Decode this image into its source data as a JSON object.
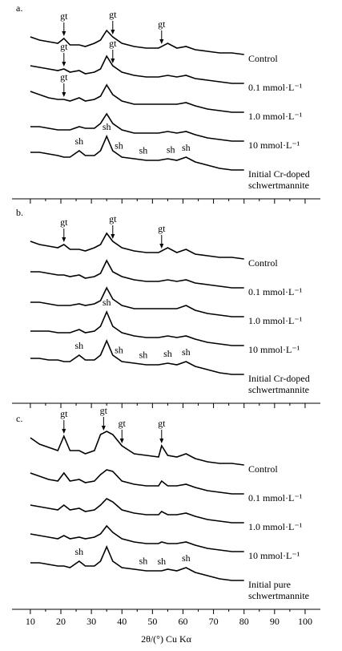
{
  "chart_data": [
    {
      "type": "line",
      "label": "a.",
      "show_tick_labels": false,
      "x": [
        10,
        13,
        16,
        19,
        21,
        23,
        26,
        28,
        31,
        33,
        35,
        37,
        40,
        44,
        48,
        52,
        55,
        58,
        61,
        64,
        68,
        72,
        76,
        80
      ],
      "series": [
        {
          "name": "Control",
          "color": "#000000",
          "values": [
            6,
            5,
            4.5,
            4,
            5.5,
            3.5,
            3.5,
            3,
            4,
            5,
            8,
            6,
            4,
            3,
            2.5,
            2.5,
            4,
            2.5,
            3,
            2,
            1.5,
            1,
            1,
            0.5
          ]
        },
        {
          "name": "0.1 mmol·L⁻¹",
          "color": "#000000",
          "values": [
            6,
            5.5,
            5,
            4.5,
            5,
            4,
            4.5,
            3.5,
            4,
            5,
            9,
            6,
            4,
            3,
            2.5,
            2.5,
            3,
            2.5,
            3,
            2,
            1.5,
            1,
            0.5,
            0.5
          ]
        },
        {
          "name": "1.0 mmol·L⁻¹",
          "color": "#000000",
          "values": [
            7,
            6,
            5,
            4.5,
            4.5,
            4,
            5,
            4,
            4.5,
            5.5,
            9,
            6,
            4,
            3,
            3,
            3,
            3,
            3,
            3.5,
            2.5,
            1.5,
            1,
            0.5,
            0.5
          ]
        },
        {
          "name": "10 mmol·L⁻¹",
          "color": "#000000",
          "values": [
            5,
            5,
            4.5,
            4,
            4,
            4,
            5,
            4.5,
            4.5,
            6,
            9,
            6,
            4,
            3,
            3,
            3,
            3.5,
            3,
            3.5,
            2.5,
            1.5,
            1,
            0.5,
            0.5
          ]
        },
        {
          "name": "Initial Cr-doped schwertmannite",
          "color": "#000000",
          "values": [
            6,
            6,
            5.5,
            5,
            4.5,
            4.5,
            6.5,
            5,
            5,
            6.5,
            11,
            6.5,
            4.5,
            4,
            3.5,
            3.5,
            4,
            3.5,
            4.5,
            3,
            2,
            1,
            0.5,
            0.5
          ]
        }
      ],
      "annotations": [
        {
          "text": "gt",
          "x": 21,
          "series": 0,
          "arrow": true
        },
        {
          "text": "gt",
          "x": 37,
          "series": 0,
          "arrow": true
        },
        {
          "text": "gt",
          "x": 53,
          "series": 0,
          "arrow": true
        },
        {
          "text": "gt",
          "x": 21,
          "series": 1,
          "arrow": true
        },
        {
          "text": "gt",
          "x": 37,
          "series": 1,
          "arrow": true
        },
        {
          "text": "gt",
          "x": 21,
          "series": 2,
          "arrow": true
        },
        {
          "text": "sh",
          "x": 26,
          "series": 4,
          "arrow": false
        },
        {
          "text": "sh",
          "x": 35,
          "series": 4,
          "arrow": false
        },
        {
          "text": "sh",
          "x": 39,
          "series": 4,
          "arrow": false
        },
        {
          "text": "sh",
          "x": 47,
          "series": 4,
          "arrow": false
        },
        {
          "text": "sh",
          "x": 56,
          "series": 4,
          "arrow": false
        },
        {
          "text": "sh",
          "x": 61,
          "series": 4,
          "arrow": false
        }
      ],
      "xlim": [
        4,
        105
      ],
      "xticks": [
        10,
        20,
        30,
        40,
        50,
        60,
        70,
        80,
        90,
        100
      ],
      "minor_xticks": [
        15,
        25,
        35,
        45,
        55,
        65,
        75,
        85,
        95
      ]
    },
    {
      "type": "line",
      "label": "b.",
      "show_tick_labels": false,
      "x": [
        10,
        13,
        16,
        19,
        21,
        23,
        26,
        28,
        31,
        33,
        35,
        37,
        40,
        44,
        48,
        52,
        55,
        58,
        61,
        64,
        68,
        72,
        76,
        80
      ],
      "series": [
        {
          "name": "Control",
          "color": "#000000",
          "values": [
            6,
            5,
            4.5,
            4,
            5,
            3.5,
            3.5,
            3,
            4,
            5,
            8.5,
            6,
            4,
            3,
            2.5,
            2.5,
            4,
            2.5,
            3.5,
            2,
            1.5,
            1,
            1,
            0.5
          ]
        },
        {
          "name": "0.1 mmol·L⁻¹",
          "color": "#000000",
          "values": [
            5.5,
            5.5,
            5,
            4.5,
            4.5,
            4,
            4.5,
            3.5,
            4,
            5,
            9,
            5.5,
            4,
            3,
            2.5,
            2.5,
            3,
            2.5,
            3,
            2,
            1.5,
            1,
            0.5,
            0.5
          ]
        },
        {
          "name": "1.0 mmol·L⁻¹",
          "color": "#000000",
          "values": [
            5,
            5,
            4.5,
            4,
            4,
            4,
            4.5,
            4,
            4.5,
            5.5,
            9.5,
            6,
            4,
            3,
            3,
            3,
            3,
            3,
            4,
            2.5,
            1.5,
            1,
            0.5,
            0.5
          ]
        },
        {
          "name": "10 mmol·L⁻¹",
          "color": "#000000",
          "values": [
            5,
            5,
            5,
            4.5,
            4.5,
            4.5,
            5.5,
            4.5,
            5,
            6.5,
            11,
            6.5,
            4.5,
            3.5,
            3,
            3,
            3.5,
            3,
            3.5,
            2.5,
            1.5,
            1,
            0.5,
            0.5
          ]
        },
        {
          "name": "Initial Cr-doped schwertmannite",
          "color": "#000000",
          "values": [
            5.5,
            5.5,
            5,
            5,
            4.5,
            4.5,
            6.5,
            5,
            5,
            6.5,
            11,
            6.5,
            4.5,
            4,
            3.5,
            3.5,
            4,
            3.5,
            4.5,
            3,
            2,
            1,
            0.5,
            0.5
          ]
        }
      ],
      "annotations": [
        {
          "text": "gt",
          "x": 21,
          "series": 0,
          "arrow": true
        },
        {
          "text": "gt",
          "x": 37,
          "series": 0,
          "arrow": true
        },
        {
          "text": "gt",
          "x": 53,
          "series": 0,
          "arrow": true
        },
        {
          "text": "sh",
          "x": 35,
          "series": 3,
          "arrow": false
        },
        {
          "text": "sh",
          "x": 26,
          "series": 4,
          "arrow": false
        },
        {
          "text": "sh",
          "x": 39,
          "series": 4,
          "arrow": false
        },
        {
          "text": "sh",
          "x": 47,
          "series": 4,
          "arrow": false
        },
        {
          "text": "sh",
          "x": 55,
          "series": 4,
          "arrow": false
        },
        {
          "text": "sh",
          "x": 61,
          "series": 4,
          "arrow": false
        }
      ],
      "xlim": [
        4,
        105
      ],
      "xticks": [
        10,
        20,
        30,
        40,
        50,
        60,
        70,
        80,
        90,
        100
      ],
      "minor_xticks": [
        15,
        25,
        35,
        45,
        55,
        65,
        75,
        85,
        95
      ]
    },
    {
      "type": "line",
      "label": "c.",
      "show_tick_labels": true,
      "xlabel": "2θ/(°) Cu Kα",
      "x": [
        10,
        13,
        16,
        19,
        21,
        23,
        26,
        28,
        31,
        33,
        35,
        37,
        40,
        44,
        48,
        52,
        53,
        55,
        58,
        61,
        64,
        68,
        72,
        76,
        80
      ],
      "series": [
        {
          "name": "Control",
          "color": "#000000",
          "values": [
            9,
            7,
            6,
            5,
            9.5,
            5,
            5,
            4,
            5,
            10,
            11,
            10,
            6.5,
            4,
            3.5,
            3,
            6.5,
            3.5,
            3,
            4,
            2.5,
            1.5,
            1,
            1,
            0.5
          ]
        },
        {
          "name": "0.1 mmol·L⁻¹",
          "color": "#000000",
          "values": [
            7,
            6,
            5,
            4.5,
            7,
            4.5,
            5,
            4,
            4.5,
            6.5,
            8,
            7.5,
            4.5,
            3.5,
            3,
            3,
            4.5,
            3,
            3,
            3.5,
            2.5,
            1.5,
            1,
            0.5,
            0.5
          ]
        },
        {
          "name": "1.0 mmol·L⁻¹",
          "color": "#000000",
          "values": [
            6,
            5.5,
            5,
            4.5,
            6,
            4.5,
            5,
            4,
            4.5,
            6,
            8,
            7,
            4.5,
            3.5,
            3,
            3,
            4,
            3,
            3,
            3.5,
            2.5,
            1.5,
            1,
            0.5,
            0.5
          ]
        },
        {
          "name": "10 mmol·L⁻¹",
          "color": "#000000",
          "values": [
            6,
            5.5,
            5,
            4.5,
            5.5,
            4.5,
            5,
            4.5,
            5,
            6,
            8.5,
            6.5,
            4.5,
            3.5,
            3,
            3,
            3.5,
            3,
            3,
            3.5,
            2.5,
            1.5,
            1,
            0.5,
            0.5
          ]
        },
        {
          "name": "Initial pure schwertmannite",
          "color": "#000000",
          "values": [
            6,
            6,
            5.5,
            5,
            5,
            4.5,
            6.5,
            5,
            5,
            6.5,
            11,
            6.5,
            4.5,
            4,
            3.5,
            3.5,
            3.5,
            4,
            3.5,
            4.5,
            3,
            2,
            1,
            0.5,
            0.5
          ]
        }
      ],
      "annotations": [
        {
          "text": "gt",
          "x": 21,
          "series": 0,
          "arrow": true
        },
        {
          "text": "gt",
          "x": 34,
          "series": 0,
          "arrow": true
        },
        {
          "text": "gt",
          "x": 40,
          "series": 0,
          "arrow": true
        },
        {
          "text": "gt",
          "x": 53,
          "series": 0,
          "arrow": true
        },
        {
          "text": "sh",
          "x": 26,
          "series": 4,
          "arrow": false
        },
        {
          "text": "sh",
          "x": 47,
          "series": 4,
          "arrow": false
        },
        {
          "text": "sh",
          "x": 53,
          "series": 4,
          "arrow": false
        },
        {
          "text": "sh",
          "x": 61,
          "series": 4,
          "arrow": false
        }
      ],
      "xlim": [
        4,
        105
      ],
      "xticks": [
        10,
        20,
        30,
        40,
        50,
        60,
        70,
        80,
        90,
        100
      ],
      "minor_xticks": [
        15,
        25,
        35,
        45,
        55,
        65,
        75,
        85,
        95
      ]
    }
  ]
}
